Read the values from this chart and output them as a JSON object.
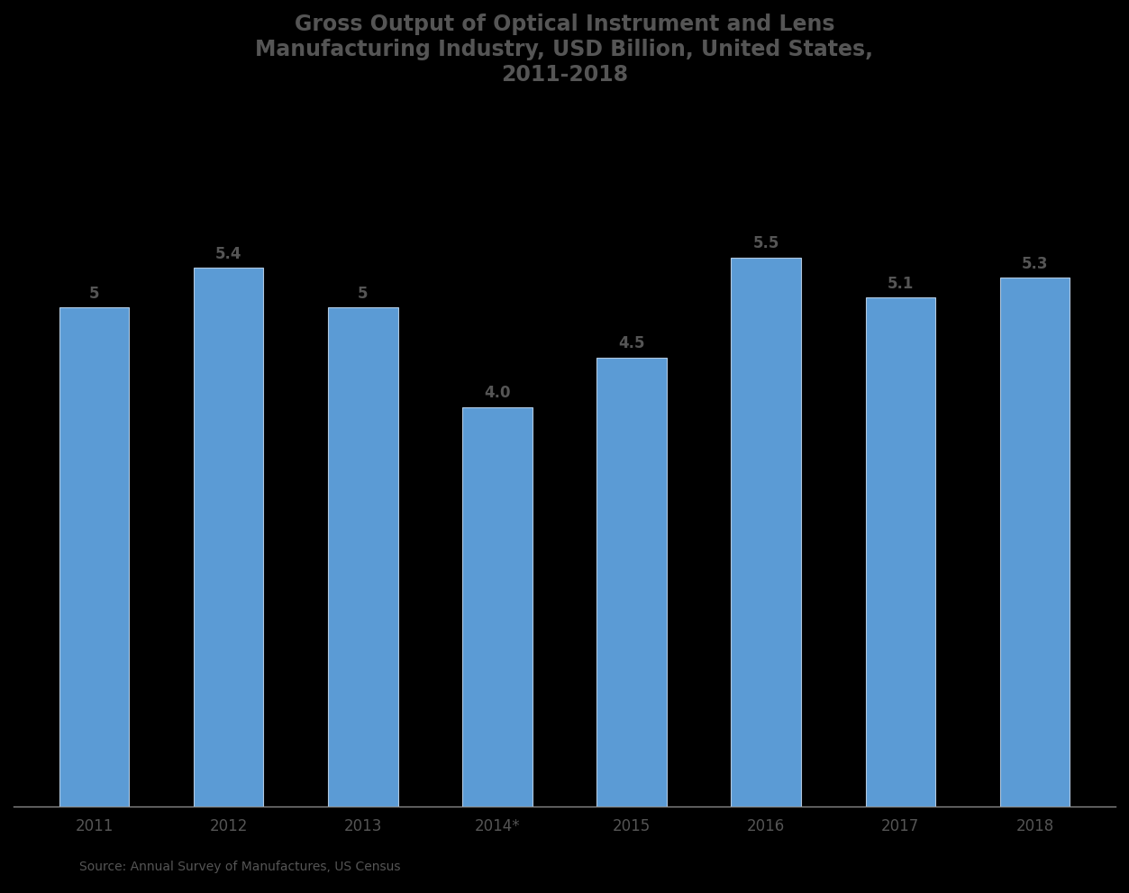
{
  "title_line1": "Gross Output of Optical Instrument and Lens",
  "title_line2": "Manufacturing Industry, USD Billion, United States,",
  "title_line3": "2011-2018",
  "categories": [
    "2011",
    "2012",
    "2013",
    "2014*",
    "2015",
    "2016",
    "2017",
    "2018"
  ],
  "values": [
    5.0,
    5.4,
    5.0,
    4.0,
    4.5,
    5.5,
    5.1,
    5.3
  ],
  "bar_color": "#5B9BD5",
  "bar_edge_color": "#B0C8E0",
  "value_labels": [
    "5",
    "5.4",
    "5",
    "4.0",
    "4.5",
    "5.5",
    "5.1",
    "5.3"
  ],
  "ylim": [
    0,
    7
  ],
  "source_text": "Source: Annual Survey of Manufactures, US Census",
  "background_color": "#000000",
  "plot_bg_color": "#000000",
  "title_color": "#555555",
  "bar_label_color": "#555555",
  "axis_label_color": "#555555",
  "spine_color": "#888888",
  "title_fontsize": 17,
  "bar_label_fontsize": 12,
  "xtick_fontsize": 12,
  "source_fontsize": 10
}
